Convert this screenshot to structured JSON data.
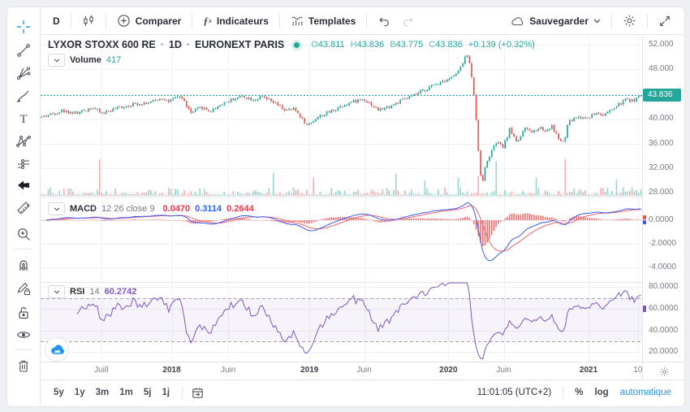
{
  "toolbar": {
    "interval": "D",
    "compare": "Comparer",
    "indicators": "Indicateurs",
    "templates": "Templates",
    "save": "Sauvegarder"
  },
  "sidebar": {
    "tools": [
      "crosshair",
      "trend-line",
      "gann-tools",
      "brush",
      "text",
      "xabcd-pattern",
      "forecast",
      "arrow",
      "ruler",
      "zoom-in",
      "magnet",
      "drawing-lock",
      "lock-all",
      "hide-drawings",
      "remove-drawings"
    ]
  },
  "symbol": {
    "name": "LYXOR STOXX 600 RE",
    "sep": "·",
    "interval": "1D",
    "exchange": "EURONEXT PARIS",
    "ohlc": [
      {
        "k": "O",
        "v": "43.811"
      },
      {
        "k": "H",
        "v": "43.836"
      },
      {
        "k": "B",
        "v": "43.775"
      },
      {
        "k": "C",
        "v": "43.836"
      }
    ],
    "change": "+0.139 (+0.32%)"
  },
  "volume": {
    "label": "Volume",
    "value": "417"
  },
  "macd": {
    "label": "MACD",
    "params": "12 26 close 9",
    "hist": "0.0470",
    "macd": "0.3114",
    "signal": "0.2644"
  },
  "rsi": {
    "label": "RSI",
    "param": "14",
    "value": "60.2742"
  },
  "price_axis": {
    "ticks": [
      "52.000",
      "48.000",
      "40.000",
      "36.000",
      "32.000",
      "28.000"
    ],
    "last": "43.836"
  },
  "footer": {
    "ranges": [
      "5y",
      "1y",
      "3m",
      "1m",
      "5j",
      "1j"
    ],
    "clock": "11:01:05 (UTC+2)",
    "percent": "%",
    "log": "log",
    "auto": "automatique"
  },
  "chart_data": {
    "type": "candlestick",
    "symbol": "LYXOR STOXX 600 RE",
    "interval": "1D",
    "exchange": "EURONEXT PARIS",
    "price_range": [
      28,
      52
    ],
    "price_ticks": [
      52,
      48,
      44,
      40,
      36,
      32,
      28
    ],
    "last_close": 43.836,
    "price_anchors": [
      [
        0.0,
        40.3
      ],
      [
        0.034,
        41.3
      ],
      [
        0.061,
        40.9
      ],
      [
        0.084,
        41.9
      ],
      [
        0.1,
        40.9
      ],
      [
        0.128,
        41.8
      ],
      [
        0.155,
        42.4
      ],
      [
        0.182,
        42.7
      ],
      [
        0.2,
        43.4
      ],
      [
        0.212,
        42.8
      ],
      [
        0.232,
        43.7
      ],
      [
        0.249,
        40.9
      ],
      [
        0.266,
        41.9
      ],
      [
        0.281,
        41.2
      ],
      [
        0.3,
        42.4
      ],
      [
        0.322,
        43.3
      ],
      [
        0.335,
        43.7
      ],
      [
        0.354,
        43.1
      ],
      [
        0.368,
        43.5
      ],
      [
        0.389,
        42.5
      ],
      [
        0.408,
        41.3
      ],
      [
        0.422,
        41.6
      ],
      [
        0.443,
        38.9
      ],
      [
        0.459,
        40.2
      ],
      [
        0.478,
        41.0
      ],
      [
        0.505,
        42.3
      ],
      [
        0.53,
        43.1
      ],
      [
        0.538,
        43.2
      ],
      [
        0.562,
        41.4
      ],
      [
        0.581,
        42.0
      ],
      [
        0.601,
        43.0
      ],
      [
        0.624,
        43.9
      ],
      [
        0.649,
        45.2
      ],
      [
        0.669,
        46.2
      ],
      [
        0.686,
        46.8
      ],
      [
        0.697,
        47.8
      ],
      [
        0.709,
        50.6
      ],
      [
        0.716,
        48.0
      ],
      [
        0.722,
        43.5
      ],
      [
        0.728,
        35.5
      ],
      [
        0.734,
        29.3
      ],
      [
        0.741,
        32.5
      ],
      [
        0.749,
        34.5
      ],
      [
        0.759,
        36.2
      ],
      [
        0.77,
        35.4
      ],
      [
        0.781,
        38.3
      ],
      [
        0.793,
        36.3
      ],
      [
        0.808,
        38.5
      ],
      [
        0.818,
        37.8
      ],
      [
        0.831,
        38.7
      ],
      [
        0.841,
        38.0
      ],
      [
        0.851,
        38.8
      ],
      [
        0.865,
        36.4
      ],
      [
        0.872,
        36.1
      ],
      [
        0.878,
        39.3
      ],
      [
        0.892,
        40.3
      ],
      [
        0.908,
        40.1
      ],
      [
        0.926,
        41.0
      ],
      [
        0.939,
        40.6
      ],
      [
        0.959,
        42.0
      ],
      [
        0.976,
        43.2
      ],
      [
        0.986,
        42.9
      ],
      [
        1.0,
        43.836
      ]
    ],
    "volume_spikes": [
      {
        "t": 0.097,
        "v": 1.0,
        "dir": "down"
      },
      {
        "t": 0.385,
        "v": 0.62,
        "dir": "up"
      },
      {
        "t": 0.453,
        "v": 0.5,
        "dir": "down"
      },
      {
        "t": 0.59,
        "v": 0.6,
        "dir": "up"
      },
      {
        "t": 0.64,
        "v": 0.42,
        "dir": "up"
      },
      {
        "t": 0.696,
        "v": 0.5,
        "dir": "up"
      },
      {
        "t": 0.728,
        "v": 0.55,
        "dir": "down"
      },
      {
        "t": 0.757,
        "v": 0.95,
        "dir": "up"
      },
      {
        "t": 0.824,
        "v": 0.5,
        "dir": "up"
      },
      {
        "t": 0.874,
        "v": 1.0,
        "dir": "down"
      },
      {
        "t": 0.96,
        "v": 0.45,
        "dir": "up"
      }
    ],
    "time_labels": [
      {
        "label": "Juill",
        "f": 0.101,
        "major": false
      },
      {
        "label": "2018",
        "f": 0.218,
        "major": true
      },
      {
        "label": "Juin",
        "f": 0.312,
        "major": false
      },
      {
        "label": "2019",
        "f": 0.447,
        "major": true
      },
      {
        "label": "Juin",
        "f": 0.538,
        "major": false
      },
      {
        "label": "2020",
        "f": 0.678,
        "major": true
      },
      {
        "label": "Juin",
        "f": 0.77,
        "major": false
      },
      {
        "label": "2021",
        "f": 0.911,
        "major": true
      },
      {
        "label": "10",
        "f": 0.993,
        "major": false
      }
    ],
    "macd_ticks": [
      0,
      -2,
      -4
    ],
    "macd_values": {
      "histogram": 0.047,
      "macd": 0.3114,
      "signal": 0.2644
    },
    "rsi_ticks": [
      80,
      60,
      40,
      20
    ],
    "rsi_bands": [
      30,
      70
    ],
    "rsi_current": 60.2742,
    "colors": {
      "up": "#26a69a",
      "down": "#ef5350",
      "macd_line": "#3d5af1",
      "signal_line": "#f0616d",
      "histogram": "#ef5350",
      "rsi": "#7e57c2",
      "band_fill": "rgba(126,87,194,0.07)",
      "band_dash": "#a5a8b2",
      "grid": "#eef1f7",
      "divider": "#e4e7ee",
      "dotted_line": "#26a69a",
      "last_price_bg": "#26a69a",
      "accent": "#2196f3"
    }
  }
}
